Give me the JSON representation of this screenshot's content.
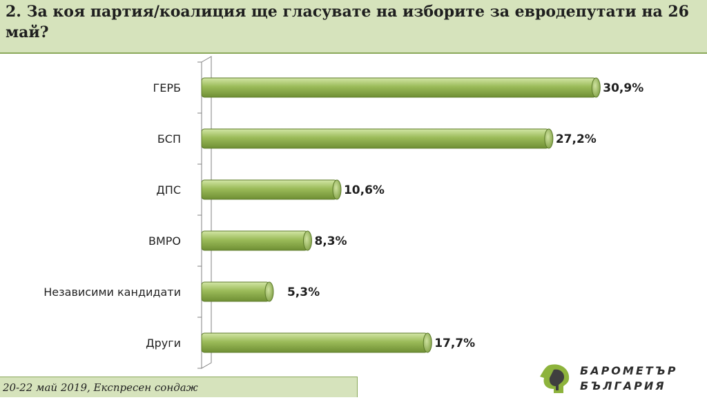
{
  "title": "2. За коя партия/коалиция ще гласувате на изборите за евродепутати на 26 май?",
  "footer": "20-22 май 2019, Експресен сондаж",
  "logo": {
    "line1": "БАРОМЕТЪР",
    "line2": "БЪЛГАРИЯ"
  },
  "colors": {
    "bar": "#9bbb59",
    "bar_dark": "#6f8f34",
    "bar_light": "#c7dd95",
    "title_bg": "#d6e3bc"
  },
  "chart_data": {
    "type": "bar",
    "orientation": "horizontal",
    "categories": [
      "ГЕРБ",
      "БСП",
      "ДПС",
      "ВМРО",
      "Независими кандидати",
      "Други"
    ],
    "values": [
      30.9,
      27.2,
      10.6,
      8.3,
      5.3,
      17.7
    ],
    "data_labels": [
      "30,9%",
      "27,2%",
      "10,6%",
      "8,3%",
      "5,3%",
      "17,7%"
    ],
    "title": "",
    "xlabel": "",
    "ylabel": "",
    "xlim": [
      0,
      35
    ],
    "grid": false,
    "legend": "none"
  }
}
